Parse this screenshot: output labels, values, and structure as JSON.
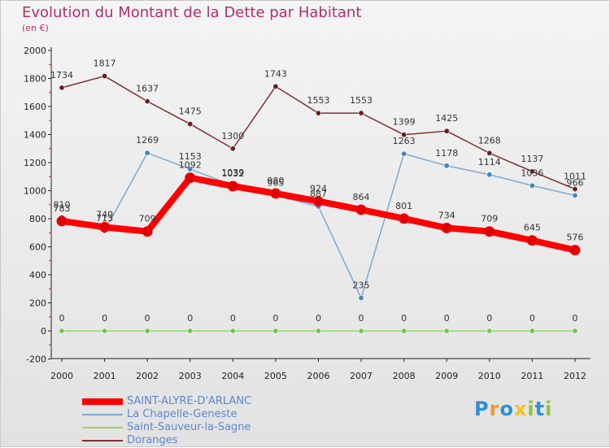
{
  "header": {
    "title": "Evolution du Montant de la Dette par Habitant",
    "subtitle": "(en €)"
  },
  "logo": {
    "text": "Proxiti",
    "letters": [
      {
        "char": "P",
        "color": "#2f8fd6"
      },
      {
        "char": "r",
        "color": "#f29a1e"
      },
      {
        "char": "o",
        "color": "#2f8fd6"
      },
      {
        "char": "x",
        "color": "#f2c21e"
      },
      {
        "char": "i",
        "color": "#8cc63e"
      },
      {
        "char": "t",
        "color": "#2f8fd6"
      },
      {
        "char": "i",
        "color": "#8cc63e"
      }
    ]
  },
  "chart_data": {
    "type": "line",
    "title": "Evolution du Montant de la Dette par Habitant",
    "subtitle": "(en €)",
    "xlabel": "",
    "ylabel": "",
    "x": [
      "2000",
      "2001",
      "2002",
      "2003",
      "2004",
      "2005",
      "2006",
      "2007",
      "2008",
      "2009",
      "2010",
      "2011",
      "2012"
    ],
    "ylim": [
      -200,
      2000
    ],
    "yticks": [
      "-200",
      "0",
      "200",
      "400",
      "600",
      "800",
      "1000",
      "1200",
      "1400",
      "1600",
      "1800",
      "2000"
    ],
    "grid": false,
    "legend_position": "bottom-left",
    "series": [
      {
        "name": "SAINT-ALYRE-D'ARLANC",
        "color": "#ff0000",
        "dot_color": "#e00000",
        "width": 8,
        "values": [
          783,
          740,
          709,
          1092,
          1032,
          980,
          924,
          864,
          801,
          734,
          709,
          645,
          576
        ],
        "labels": [
          "783",
          "740",
          "709",
          "1092",
          "1032",
          "980",
          "924",
          "864",
          "801",
          "734",
          "709",
          "645",
          "576"
        ]
      },
      {
        "name": "La Chapelle-Geneste",
        "color": "#7fa8cf",
        "dot_color": "#3f86c6",
        "width": 1.5,
        "values": [
          810,
          713,
          1269,
          1153,
          1039,
          965,
          887,
          235,
          1263,
          1178,
          1114,
          1036,
          966
        ],
        "labels": [
          "810",
          "713",
          "1269",
          "1153",
          "1039",
          "965",
          "887",
          "235",
          "1263",
          "1178",
          "1114",
          "1036",
          "966"
        ]
      },
      {
        "name": "Saint-Sauveur-la-Sagne",
        "color": "#8fd66b",
        "dot_color": "#72c64a",
        "width": 1.5,
        "values": [
          0,
          0,
          0,
          0,
          0,
          0,
          0,
          0,
          0,
          0,
          0,
          0,
          0
        ],
        "labels": [
          "0",
          "0",
          "0",
          "0",
          "0",
          "0",
          "0",
          "0",
          "0",
          "0",
          "0",
          "0",
          "0"
        ]
      },
      {
        "name": "Doranges",
        "color": "#7a3030",
        "dot_color": "#6a1e1e",
        "width": 1.5,
        "values": [
          1734,
          1817,
          1637,
          1475,
          1300,
          1743,
          1553,
          1553,
          1399,
          1425,
          1268,
          1137,
          1011
        ],
        "labels": [
          "1734",
          "1817",
          "1637",
          "1475",
          "1300",
          "1743",
          "1553",
          "1553",
          "1399",
          "1425",
          "1268",
          "1137",
          "1011"
        ]
      }
    ]
  }
}
